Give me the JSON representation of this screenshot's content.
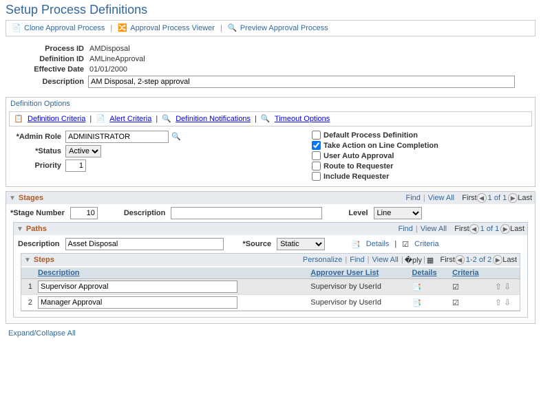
{
  "page_title": "Setup Process Definitions",
  "top_toolbar": {
    "clone": "Clone Approval Process",
    "viewer": "Approval Process Viewer",
    "preview": "Preview Approval Process"
  },
  "header": {
    "process_id_label": "Process ID",
    "process_id": "AMDisposal",
    "definition_id_label": "Definition ID",
    "definition_id": "AMLineApproval",
    "effective_date_label": "Effective Date",
    "effective_date": "01/01/2000",
    "description_label": "Description",
    "description": "AM Disposal, 2-step approval"
  },
  "def_options": {
    "title": "Definition Options",
    "criteria": "Definition Criteria",
    "alert": "Alert Criteria",
    "notifications": "Definition Notifications",
    "timeout": "Timeout Options",
    "admin_role_label": "*Admin Role",
    "admin_role": "ADMINISTRATOR",
    "status_label": "*Status",
    "status": "Active",
    "priority_label": "Priority",
    "priority": "1",
    "cb_default": "Default Process Definition",
    "cb_take_action": "Take Action on Line Completion",
    "cb_user_auto": "User Auto Approval",
    "cb_route": "Route to Requester",
    "cb_include": "Include Requester",
    "take_action_checked": true
  },
  "stages": {
    "title": "Stages",
    "find": "Find",
    "view_all": "View All",
    "first": "First",
    "last": "Last",
    "page": "1 of 1",
    "stage_number_label": "*Stage Number",
    "stage_number": "10",
    "description_label": "Description",
    "description": "",
    "level_label": "Level",
    "level": "Line"
  },
  "paths": {
    "title": "Paths",
    "find": "Find",
    "view_all": "View All",
    "first": "First",
    "last": "Last",
    "page": "1 of 1",
    "description_label": "Description",
    "description": "Asset Disposal",
    "source_label": "*Source",
    "source": "Static",
    "details": "Details",
    "criteria": "Criteria"
  },
  "steps": {
    "title": "Steps",
    "personalize": "Personalize",
    "find": "Find",
    "view_all": "View All",
    "first": "First",
    "last": "Last",
    "page": "1-2 of 2",
    "col_description": "Description",
    "col_approver": "Approver User List",
    "col_details": "Details",
    "col_criteria": "Criteria",
    "rows": [
      {
        "num": "1",
        "desc": "Supervisor Approval",
        "approver": "Supervisor by UserId"
      },
      {
        "num": "2",
        "desc": "Manager Approval",
        "approver": "Supervisor by UserId"
      }
    ]
  },
  "expand_collapse": "Expand/Collapse All"
}
